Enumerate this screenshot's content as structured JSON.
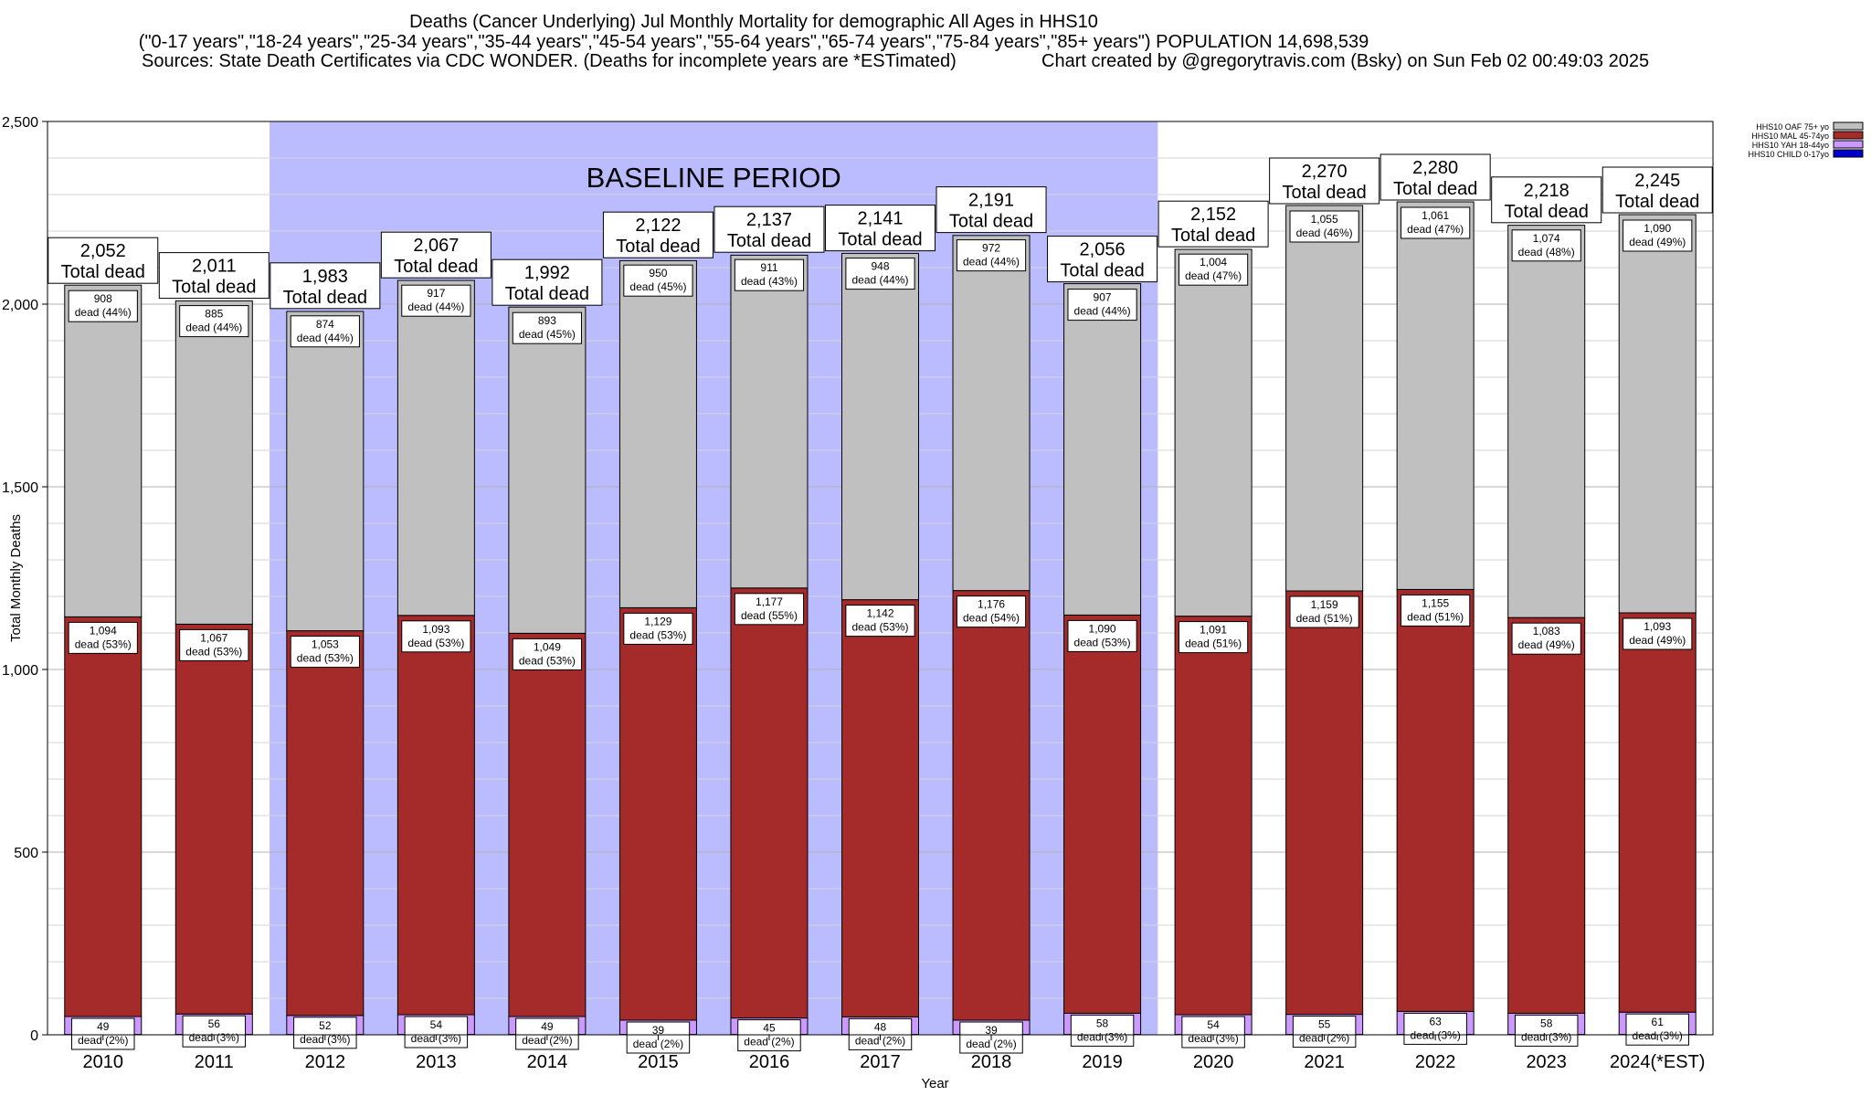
{
  "header": {
    "title_line1": "Deaths (Cancer Underlying) Jul Monthly Mortality for demographic All Ages in HHS10",
    "title_line2": "(\"0-17 years\",\"18-24 years\",\"25-34 years\",\"35-44 years\",\"45-54 years\",\"55-64 years\",\"65-74 years\",\"75-84 years\",\"85+ years\") POPULATION 14,698,539",
    "sources": "Sources: State Death Certificates via CDC WONDER. (Deaths for incomplete years are *ESTimated)",
    "credit": "Chart created by @gregorytravis.com (Bsky) on Sun Feb 02 00:49:03 2025"
  },
  "chart_data": {
    "type": "bar",
    "stacked": true,
    "xlabel": "Year",
    "ylabel": "Total Monthly Deaths",
    "ylim": [
      0,
      2500
    ],
    "yticks": [
      0,
      500,
      1000,
      1500,
      2000,
      2500
    ],
    "ytick_labels": [
      "0",
      "500",
      "1,000",
      "1,500",
      "2,000",
      "2,500"
    ],
    "grid": true,
    "legend_position": "top-right",
    "baseline_label": "BASELINE PERIOD",
    "baseline_categories": [
      "2012",
      "2019"
    ],
    "total_suffix": "Total dead",
    "categories": [
      "2010",
      "2011",
      "2012",
      "2013",
      "2014",
      "2015",
      "2016",
      "2017",
      "2018",
      "2019",
      "2020",
      "2021",
      "2022",
      "2023",
      "2024(*EST)"
    ],
    "totals": [
      2052,
      2011,
      1983,
      2067,
      1992,
      2122,
      2137,
      2141,
      2191,
      2056,
      2152,
      2270,
      2280,
      2218,
      2245
    ],
    "total_labels": [
      "2,052",
      "2,011",
      "1,983",
      "2,067",
      "1,992",
      "2,122",
      "2,137",
      "2,141",
      "2,191",
      "2,056",
      "2,152",
      "2,270",
      "2,280",
      "2,218",
      "2,245"
    ],
    "series": [
      {
        "name": "HHS10 CHILD 0-17yo",
        "color": "#0000cc",
        "values": [
          1,
          1,
          1,
          1,
          1,
          1,
          1,
          1,
          1,
          1,
          1,
          1,
          1,
          1,
          1
        ],
        "labels": [],
        "pct_labels": []
      },
      {
        "name": "HHS10 YAH 18-44yo",
        "color": "#cc99ff",
        "values": [
          49,
          56,
          52,
          54,
          49,
          39,
          45,
          48,
          39,
          58,
          54,
          55,
          63,
          58,
          61
        ],
        "labels": [
          "49",
          "56",
          "52",
          "54",
          "49",
          "39",
          "45",
          "48",
          "39",
          "58",
          "54",
          "55",
          "63",
          "58",
          "61"
        ],
        "pct_labels": [
          "dead (2%)",
          "dead (3%)",
          "dead (3%)",
          "dead (3%)",
          "dead (2%)",
          "dead (2%)",
          "dead (2%)",
          "dead (2%)",
          "dead (2%)",
          "dead (3%)",
          "dead (3%)",
          "dead (2%)",
          "dead (3%)",
          "dead (3%)",
          "dead (3%)"
        ]
      },
      {
        "name": "HHS10 MAL 45-74yo",
        "color": "#a52a2a",
        "values": [
          1094,
          1067,
          1053,
          1093,
          1049,
          1129,
          1177,
          1142,
          1176,
          1090,
          1091,
          1159,
          1155,
          1083,
          1093
        ],
        "labels": [
          "1,094",
          "1,067",
          "1,053",
          "1,093",
          "1,049",
          "1,129",
          "1,177",
          "1,142",
          "1,176",
          "1,090",
          "1,091",
          "1,159",
          "1,155",
          "1,083",
          "1,093"
        ],
        "pct_labels": [
          "dead (53%)",
          "dead (53%)",
          "dead (53%)",
          "dead (53%)",
          "dead (53%)",
          "dead (53%)",
          "dead (55%)",
          "dead (53%)",
          "dead (54%)",
          "dead (53%)",
          "dead (51%)",
          "dead (51%)",
          "dead (51%)",
          "dead (49%)",
          "dead (49%)"
        ]
      },
      {
        "name": "HHS10 OAF 75+ yo",
        "color": "#c0c0c0",
        "values": [
          908,
          885,
          874,
          917,
          893,
          950,
          911,
          948,
          972,
          907,
          1004,
          1055,
          1061,
          1074,
          1090
        ],
        "labels": [
          "908",
          "885",
          "874",
          "917",
          "893",
          "950",
          "911",
          "948",
          "972",
          "907",
          "1,004",
          "1,055",
          "1,061",
          "1,074",
          "1,090"
        ],
        "pct_labels": [
          "dead (44%)",
          "dead (44%)",
          "dead (44%)",
          "dead (44%)",
          "dead (45%)",
          "dead (45%)",
          "dead (43%)",
          "dead (44%)",
          "dead (44%)",
          "dead (44%)",
          "dead (47%)",
          "dead (46%)",
          "dead (47%)",
          "dead (48%)",
          "dead (49%)"
        ]
      }
    ]
  }
}
